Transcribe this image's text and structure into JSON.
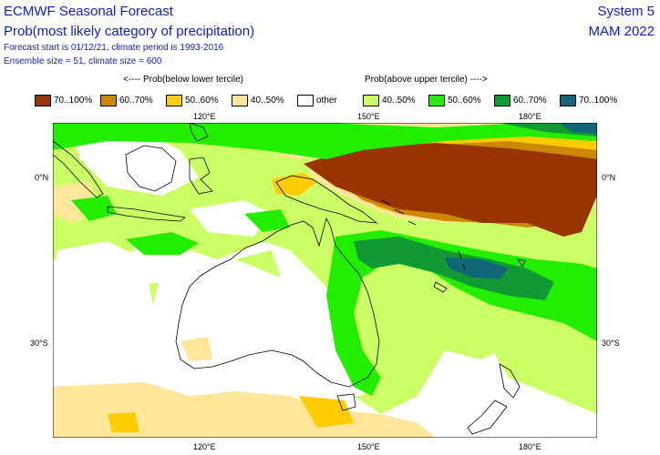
{
  "header": {
    "title": "ECMWF Seasonal Forecast",
    "subtitle": "Prob(most likely category of precipitation)",
    "line3": "Forecast start is 01/12/21, climate period is 1993-2016",
    "line4": "Ensemble size = 51, climate size = 600",
    "system": "System 5",
    "season": "MAM 2022"
  },
  "legend": {
    "below_label": "<---- Prob(below lower tercile)",
    "above_label": "Prob(above upper tercile) ---->",
    "items": [
      {
        "label": "70..100%",
        "color": "#993300"
      },
      {
        "label": "60..70%",
        "color": "#cc8800"
      },
      {
        "label": "50..60%",
        "color": "#ffcc00"
      },
      {
        "label": "40..50%",
        "color": "#ffe699"
      },
      {
        "label": "other",
        "color": "#ffffff"
      },
      {
        "label": "40..50%",
        "color": "#ccff66"
      },
      {
        "label": "50..60%",
        "color": "#22ee00"
      },
      {
        "label": "60..70%",
        "color": "#119933"
      },
      {
        "label": "70..100%",
        "color": "#116677"
      }
    ]
  },
  "axes": {
    "top": [
      "120°E",
      "150°E",
      "180°E"
    ],
    "bottom": [
      "120°E",
      "150°E",
      "180°E"
    ],
    "left": [
      "0°N",
      "30°S"
    ],
    "right": [
      "0°N",
      "30°S"
    ]
  }
}
